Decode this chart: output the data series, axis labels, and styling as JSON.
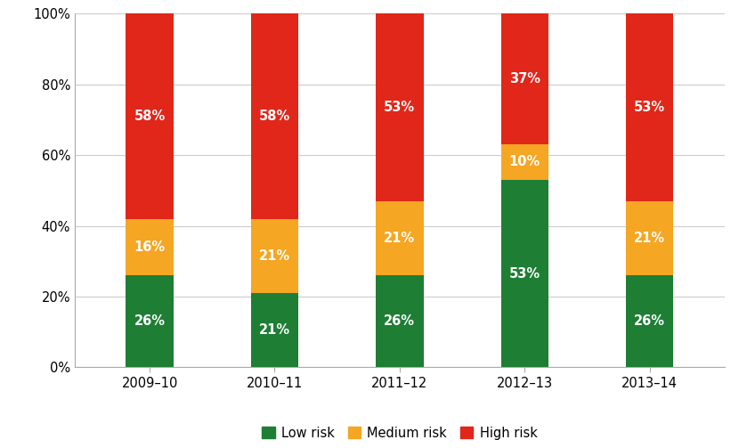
{
  "categories": [
    "2009–10",
    "2010–11",
    "2011–12",
    "2012–13",
    "2013–14"
  ],
  "low_risk": [
    26,
    21,
    26,
    53,
    26
  ],
  "medium_risk": [
    16,
    21,
    21,
    10,
    21
  ],
  "high_risk": [
    58,
    58,
    53,
    37,
    53
  ],
  "low_color": "#1e7e34",
  "medium_color": "#f5a623",
  "high_color": "#e0271a",
  "low_label": "Low risk",
  "medium_label": "Medium risk",
  "high_label": "High risk",
  "ylim": [
    0,
    100
  ],
  "yticks": [
    0,
    20,
    40,
    60,
    80,
    100
  ],
  "yticklabels": [
    "0%",
    "20%",
    "40%",
    "60%",
    "80%",
    "100%"
  ],
  "bar_width": 0.38,
  "label_fontsize": 10.5,
  "tick_fontsize": 10.5,
  "legend_fontsize": 10.5,
  "background_color": "#ffffff"
}
